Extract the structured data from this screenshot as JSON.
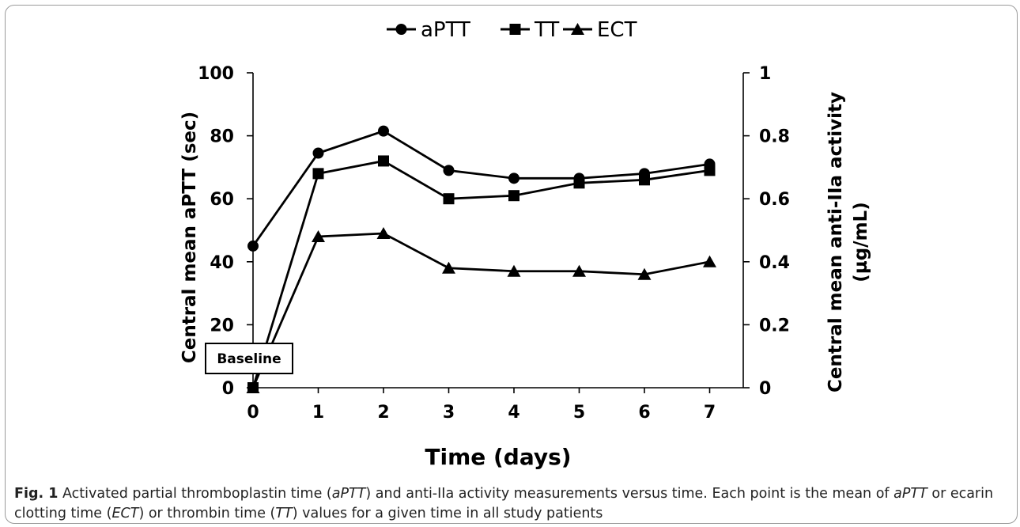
{
  "chart_data": {
    "type": "line",
    "x": [
      0,
      1,
      2,
      3,
      4,
      5,
      6,
      7
    ],
    "series": [
      {
        "name": "aPTT",
        "marker": "circle",
        "axis": "left",
        "values": [
          45,
          74.5,
          81.5,
          69,
          66.5,
          66.5,
          68,
          71
        ]
      },
      {
        "name": "TT",
        "marker": "square",
        "axis": "left",
        "values": [
          0,
          68,
          72,
          60,
          61,
          65,
          66,
          69
        ]
      },
      {
        "name": "ECT",
        "marker": "triangle",
        "axis": "left",
        "values": [
          0,
          48,
          49,
          38,
          37,
          37,
          36,
          40
        ]
      }
    ],
    "xlabel": "Time (days)",
    "ylabel": "Central mean aPTT (sec)",
    "y2label_line1": "Central mean anti-IIa activity",
    "y2label_line2": "(µg/mL)",
    "xlim": [
      0,
      7
    ],
    "ylim": [
      0,
      100
    ],
    "y2lim": [
      0,
      1
    ],
    "xticks": [
      "0",
      "1",
      "2",
      "3",
      "4",
      "5",
      "6",
      "7"
    ],
    "yticks": [
      "0",
      "20",
      "40",
      "60",
      "80",
      "100"
    ],
    "y2ticks": [
      "0",
      "0.2",
      "0.4",
      "0.6",
      "0.8",
      "1"
    ],
    "annotation": "Baseline",
    "legend_position": "top-center",
    "grid": false,
    "line_color": "#000000"
  },
  "caption": {
    "label": "Fig. 1",
    "text_html": "Activated partial thromboplastin time (<i>aPTT</i>) and anti-IIa activity measurements versus time. Each point is the mean of <i>aPTT</i> or ecarin clotting time (<i>ECT</i>) or thrombin time (<i>TT</i>) values for a given time in all study patients"
  }
}
